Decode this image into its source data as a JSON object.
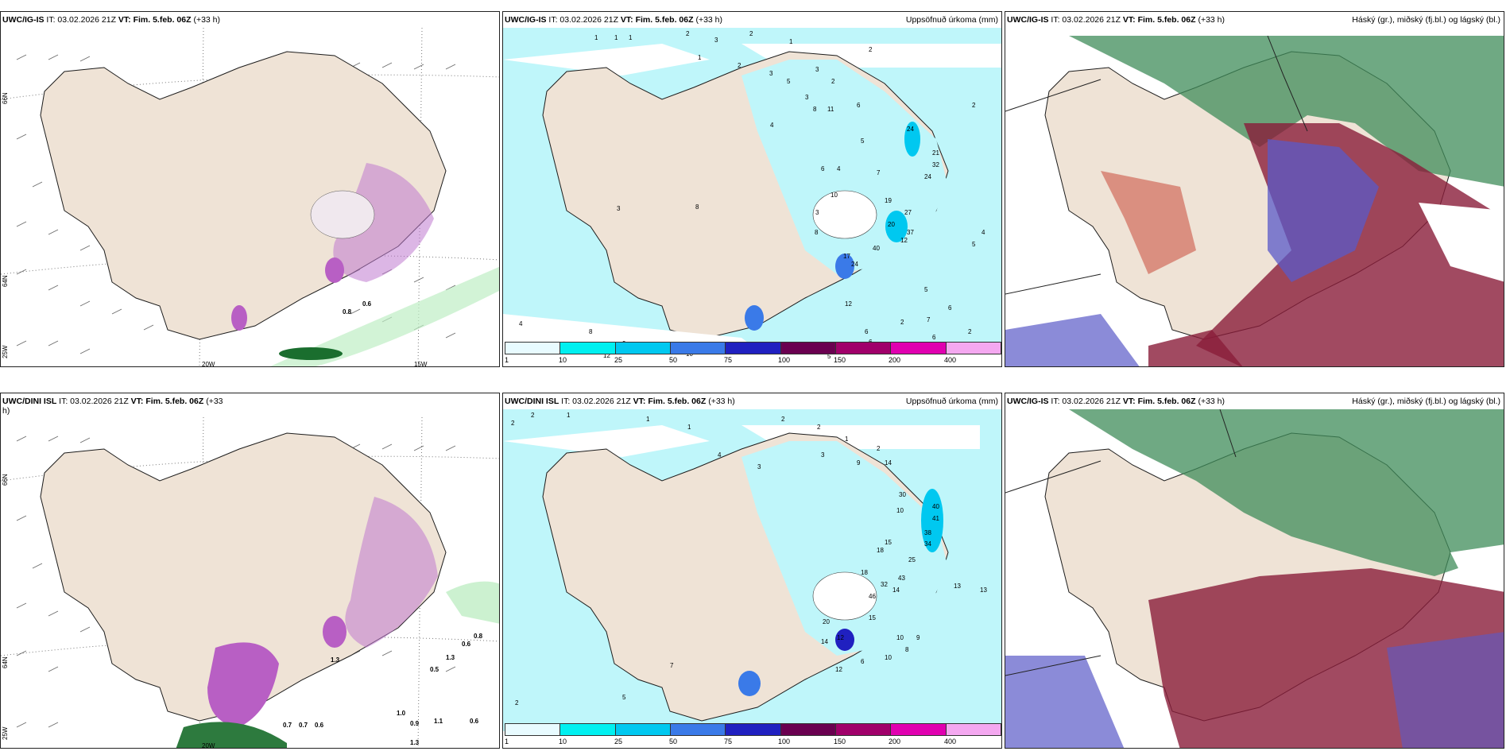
{
  "panels": [
    {
      "id": "p1",
      "model": "UWC/IG-IS",
      "it": "IT: 03.02.2026 21Z",
      "vt": "VT: Fim. 5.feb. 06Z",
      "lead": "(+33 h)",
      "right": ""
    },
    {
      "id": "p2",
      "model": "UWC/IG-IS",
      "it": "IT: 03.02.2026 21Z",
      "vt": "VT: Fim. 5.feb. 06Z",
      "lead": "(+33 h)",
      "right": "Uppsöfnuð úrkoma (mm)"
    },
    {
      "id": "p3",
      "model": "UWC/IG-IS",
      "it": "IT: 03.02.2026 21Z",
      "vt": "VT: Fim. 5.feb. 06Z",
      "lead": "(+33 h)",
      "right": "Háský (gr.), miðský (fj.bl.) og lágský (bl.)"
    },
    {
      "id": "p4",
      "model": "UWC/DINI ISL",
      "it": "IT: 03.02.2026 21Z",
      "vt": "VT: Fim. 5.feb. 06Z",
      "lead": "(+33",
      "right": "",
      "lead_wrap": "h)"
    },
    {
      "id": "p5",
      "model": "UWC/DINI ISL",
      "it": "IT: 03.02.2026 21Z",
      "vt": "VT: Fim. 5.feb. 06Z",
      "lead": "(+33 h)",
      "right": "Uppsöfnuð úrkoma (mm)"
    },
    {
      "id": "p6",
      "model": "UWC/IG-IS",
      "it": "IT: 03.02.2026 21Z",
      "vt": "VT: Fim. 5.feb. 06Z",
      "lead": "(+33 h)",
      "right": "Háský (gr.), miðský (fj.bl.) og lágský (bl.)"
    }
  ],
  "axis_labels": {
    "lat66": "66N",
    "lat64": "64N",
    "lon25": "25W",
    "lon20": "20W",
    "lon15": "15W"
  },
  "colorbar": {
    "ticks": [
      "1",
      "10",
      "25",
      "50",
      "75",
      "100",
      "150",
      "200",
      "400"
    ],
    "colors": [
      "#e8fbff",
      "#00f0f0",
      "#00c8f0",
      "#3a7ae8",
      "#2020c0",
      "#6a0050",
      "#a0006a",
      "#e000b0",
      "#f4a8f0"
    ]
  },
  "p1_values": [
    "0.6",
    "0.8"
  ],
  "p2_values": [
    "1",
    "1",
    "1",
    "2",
    "3",
    "2",
    "1",
    "1",
    "2",
    "3",
    "5",
    "3",
    "2",
    "3",
    "4",
    "2",
    "8",
    "11",
    "6",
    "5",
    "24",
    "2",
    "6",
    "4",
    "7",
    "21",
    "32",
    "24",
    "3",
    "10",
    "8",
    "19",
    "20",
    "27",
    "37",
    "12",
    "3",
    "8",
    "17",
    "24",
    "40",
    "5",
    "4",
    "7",
    "12",
    "5",
    "2",
    "8",
    "9",
    "6",
    "6",
    "4",
    "12",
    "10",
    "5",
    "2",
    "6",
    "6"
  ],
  "p4_values": [
    "0.6",
    "0.8",
    "1.3",
    "0.5",
    "1.3",
    "1.0",
    "0.9",
    "1.1",
    "0.6",
    "0.7",
    "0.7",
    "0.6",
    "1.3"
  ],
  "p5_values": [
    "2",
    "2",
    "1",
    "1",
    "1",
    "2",
    "2",
    "4",
    "3",
    "3",
    "1",
    "2",
    "9",
    "14",
    "30",
    "10",
    "40",
    "41",
    "38",
    "34",
    "25",
    "15",
    "18",
    "32",
    "46",
    "43",
    "14",
    "20",
    "15",
    "18",
    "13",
    "14",
    "12",
    "10",
    "9",
    "8",
    "12",
    "10",
    "6",
    "7",
    "2",
    "5",
    "13"
  ],
  "colors": {
    "land": "#efe3d6",
    "ocean_light": "#b8f6fa",
    "coast": "#1c1c1c"
  }
}
